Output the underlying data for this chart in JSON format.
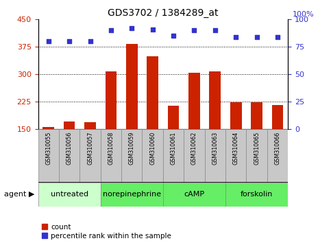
{
  "title": "GDS3702 / 1384289_at",
  "samples": [
    "GSM310055",
    "GSM310056",
    "GSM310057",
    "GSM310058",
    "GSM310059",
    "GSM310060",
    "GSM310061",
    "GSM310062",
    "GSM310063",
    "GSM310064",
    "GSM310065",
    "GSM310066"
  ],
  "counts": [
    155,
    170,
    168,
    308,
    383,
    348,
    213,
    303,
    308,
    222,
    222,
    215
  ],
  "percentile_ranks": [
    80,
    80,
    80,
    90,
    92,
    91,
    85,
    90,
    90,
    84,
    84,
    84
  ],
  "bar_color": "#cc2200",
  "dot_color": "#3333cc",
  "ylim_left": [
    150,
    450
  ],
  "yticks_left": [
    150,
    225,
    300,
    375,
    450
  ],
  "ylim_right": [
    0,
    100
  ],
  "yticks_right": [
    0,
    25,
    50,
    75,
    100
  ],
  "group_defs": [
    [
      0,
      2,
      "untreated",
      "#ccffcc"
    ],
    [
      3,
      5,
      "norepinephrine",
      "#66ee66"
    ],
    [
      6,
      8,
      "cAMP",
      "#66ee66"
    ],
    [
      9,
      11,
      "forskolin",
      "#66ee66"
    ]
  ],
  "agent_label": "agent ▶",
  "legend_count_label": "count",
  "legend_pct_label": "percentile rank within the sample",
  "tick_color_left": "#cc2200",
  "tick_color_right": "#3333cc",
  "sample_box_color": "#c8c8c8",
  "tick_fontsize": 8,
  "bar_bottom": 150
}
